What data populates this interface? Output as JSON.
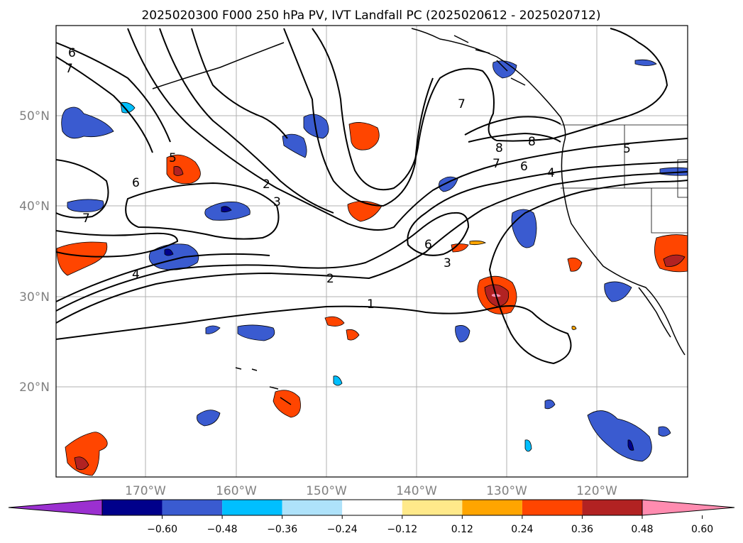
{
  "title": "2025020300 F000 250 hPa PV, IVT Landfall PC (2025020612 - 2025020712)",
  "map": {
    "lat_labels": [
      "50°N",
      "40°N",
      "30°N",
      "20°N"
    ],
    "lon_labels": [
      "170°W",
      "160°W",
      "150°W",
      "140°W",
      "130°W",
      "120°W"
    ],
    "contour_labels": [
      "6",
      "7",
      "5",
      "6",
      "7",
      "2",
      "3",
      "4",
      "7",
      "8",
      "8",
      "7",
      "6",
      "4",
      "5",
      "6",
      "3",
      "2",
      "1"
    ]
  },
  "colorbar": {
    "ticks": [
      "−0.60",
      "−0.48",
      "−0.36",
      "−0.24",
      "−0.12",
      "0.12",
      "0.24",
      "0.36",
      "0.48",
      "0.60"
    ],
    "colors": [
      "#9b30d0",
      "#00008b",
      "#3a5bd0",
      "#00bfff",
      "#aee2fa",
      "#ffffff",
      "#ffe98a",
      "#ffa500",
      "#ff4500",
      "#b22222",
      "#ff8cb0"
    ]
  }
}
